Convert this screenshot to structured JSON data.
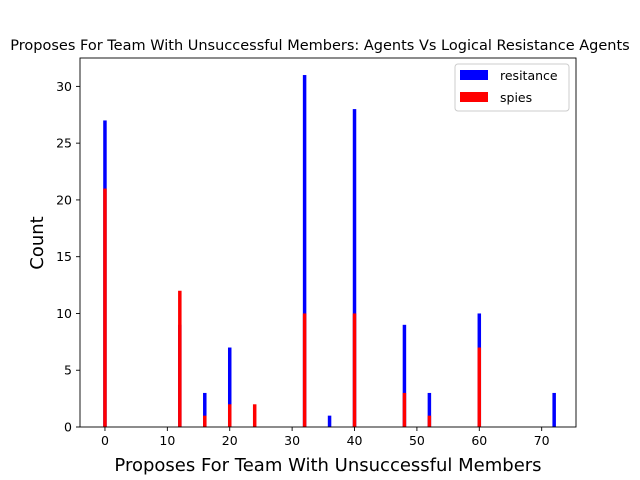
{
  "chart_data": {
    "type": "bar",
    "title": "Proposes For Team With Unsuccessful Members: Agents Vs Logical Resistance Agents",
    "xlabel": "Proposes For Team With Unsuccessful Members",
    "ylabel": "Count",
    "xlim": [
      -4,
      75.5
    ],
    "ylim": [
      0,
      32.5
    ],
    "xticks": [
      0,
      10,
      20,
      30,
      40,
      50,
      60,
      70
    ],
    "yticks": [
      0,
      5,
      10,
      15,
      20,
      25,
      30
    ],
    "legend": {
      "placement": "top-right",
      "entries": [
        "resitance",
        "spies"
      ]
    },
    "series": [
      {
        "name": "resitance",
        "color": "#0000ff",
        "x": [
          0,
          12,
          16,
          20,
          32,
          36,
          40,
          48,
          52,
          60,
          72
        ],
        "values": [
          27,
          9,
          3,
          7,
          31,
          1,
          28,
          9,
          3,
          10,
          3
        ]
      },
      {
        "name": "spies",
        "color": "#ff0000",
        "x": [
          0,
          12,
          16,
          20,
          24,
          32,
          40,
          48,
          52,
          60
        ],
        "values": [
          21,
          12,
          1,
          2,
          2,
          10,
          10,
          3,
          1,
          7
        ]
      }
    ]
  }
}
